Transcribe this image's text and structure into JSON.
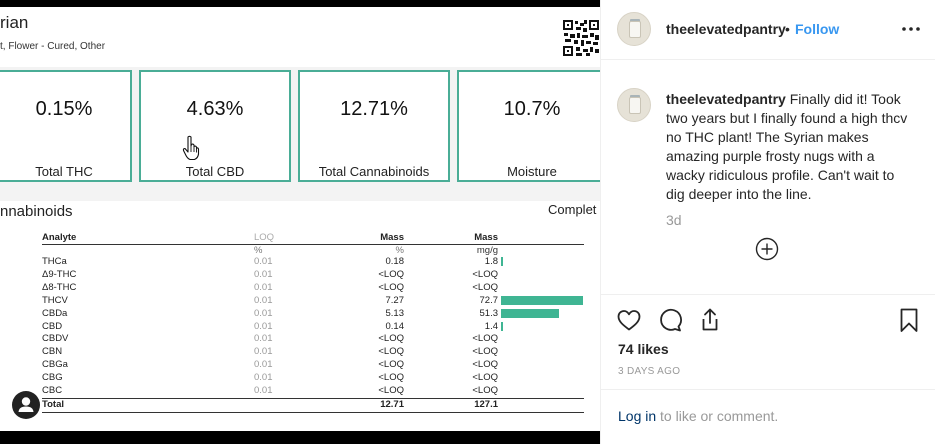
{
  "report": {
    "title": "rian",
    "subtitle": "t, Flower - Cured, Other",
    "cards": [
      {
        "value": "0.15%",
        "label": "Total THC"
      },
      {
        "value": "4.63%",
        "label": "Total CBD"
      },
      {
        "value": "12.71%",
        "label": "Total Cannabinoids"
      },
      {
        "value": "10.7%",
        "label": "Moisture"
      }
    ],
    "section_title": "nnabinoids",
    "section_status": "Complet",
    "table": {
      "headers": [
        "Analyte",
        "LOQ",
        "Mass",
        "Mass"
      ],
      "units": [
        "",
        "%",
        "%",
        "mg/g"
      ],
      "rows": [
        {
          "analyte": "THCa",
          "loq": "0.01",
          "pct": "0.18",
          "mg": "1.8",
          "bar": 1.8
        },
        {
          "analyte": "Δ9-THC",
          "loq": "0.01",
          "pct": "<LOQ",
          "mg": "<LOQ",
          "bar": 0
        },
        {
          "analyte": "Δ8-THC",
          "loq": "0.01",
          "pct": "<LOQ",
          "mg": "<LOQ",
          "bar": 0
        },
        {
          "analyte": "THCV",
          "loq": "0.01",
          "pct": "7.27",
          "mg": "72.7",
          "bar": 72.7
        },
        {
          "analyte": "CBDa",
          "loq": "0.01",
          "pct": "5.13",
          "mg": "51.3",
          "bar": 51.3
        },
        {
          "analyte": "CBD",
          "loq": "0.01",
          "pct": "0.14",
          "mg": "1.4",
          "bar": 1.4
        },
        {
          "analyte": "CBDV",
          "loq": "0.01",
          "pct": "<LOQ",
          "mg": "<LOQ",
          "bar": 0
        },
        {
          "analyte": "CBN",
          "loq": "0.01",
          "pct": "<LOQ",
          "mg": "<LOQ",
          "bar": 0
        },
        {
          "analyte": "CBGa",
          "loq": "0.01",
          "pct": "<LOQ",
          "mg": "<LOQ",
          "bar": 0
        },
        {
          "analyte": "CBG",
          "loq": "0.01",
          "pct": "<LOQ",
          "mg": "<LOQ",
          "bar": 0
        },
        {
          "analyte": "CBC",
          "loq": "0.01",
          "pct": "<LOQ",
          "mg": "<LOQ",
          "bar": 0
        }
      ],
      "total": {
        "analyte": "Total",
        "pct": "12.71",
        "mg": "127.1"
      },
      "bar_max": 72.7,
      "bar_color": "#3fb593"
    },
    "accent_color": "#4aad96"
  },
  "post": {
    "username": "theelevatedpantry",
    "separator": "•",
    "follow_label": "Follow",
    "more_icon": "more-horizontal-icon",
    "caption": "Finally did it! Took two years but I finally found a high thcv no THC plant! The Syrian makes amazing purple frosty nugs with a wacky ridiculous profile. Can't wait to dig deeper into the line.",
    "time_ago": "3d",
    "likes": "74 likes",
    "date": "3 DAYS AGO",
    "login_link": "Log in",
    "login_suffix": " to like or comment.",
    "link_color": "#3897f0"
  }
}
